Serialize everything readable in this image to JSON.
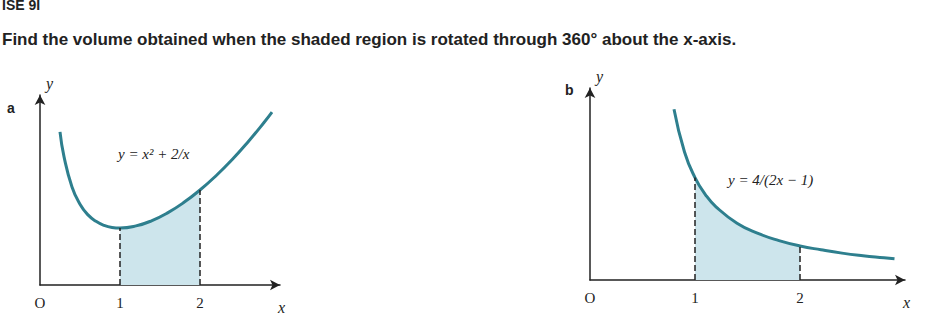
{
  "page": {
    "heading": "ISE 9I",
    "instruction": "Find the volume obtained when the shaded region is rotated through 360° about the x-axis."
  },
  "chart_data": [
    {
      "type": "line",
      "title": "a",
      "x_label": "x",
      "y_label": "y",
      "x": [
        0.25,
        0.3,
        0.4,
        0.5,
        0.6,
        0.7,
        0.8,
        0.9,
        1,
        1.2,
        1.4,
        1.6,
        1.8,
        2,
        2.2,
        2.4,
        2.6,
        2.8,
        2.9
      ],
      "values": [
        8.06,
        6.76,
        5.16,
        4.25,
        3.69,
        3.35,
        3.14,
        3.03,
        3,
        3.11,
        3.39,
        3.81,
        4.35,
        5,
        5.75,
        6.59,
        7.53,
        8.55,
        9.1
      ],
      "shaded": [
        1,
        2
      ],
      "xlim": [
        0,
        3
      ],
      "ylim": [
        0,
        10
      ],
      "xticks": [
        {
          "value": 0,
          "label": "O"
        },
        1,
        2
      ],
      "tick_labels": "x",
      "grid": false,
      "color": "#2e7f8e",
      "annotations": [
        "y = x² + 2/x"
      ]
    },
    {
      "type": "line",
      "title": "b",
      "x_label": "x",
      "y_label": "y",
      "x": [
        0.8,
        0.9,
        1,
        1.1,
        1.2,
        1.4,
        1.6,
        1.8,
        2,
        2.2,
        2.4,
        2.6,
        2.8,
        2.9
      ],
      "values": [
        6.67,
        5,
        4,
        3.33,
        2.86,
        2.22,
        1.82,
        1.54,
        1.33,
        1.18,
        1.05,
        0.95,
        0.87,
        0.83
      ],
      "shaded": [
        1,
        2
      ],
      "xlim": [
        0,
        3
      ],
      "ylim": [
        0,
        7.5
      ],
      "xticks": [
        {
          "value": 0,
          "label": "O"
        },
        1,
        2
      ],
      "tick_labels": "x",
      "grid": false,
      "color": "#2e7f8e",
      "annotations": [
        "y = 4/(2x − 1)"
      ]
    }
  ]
}
